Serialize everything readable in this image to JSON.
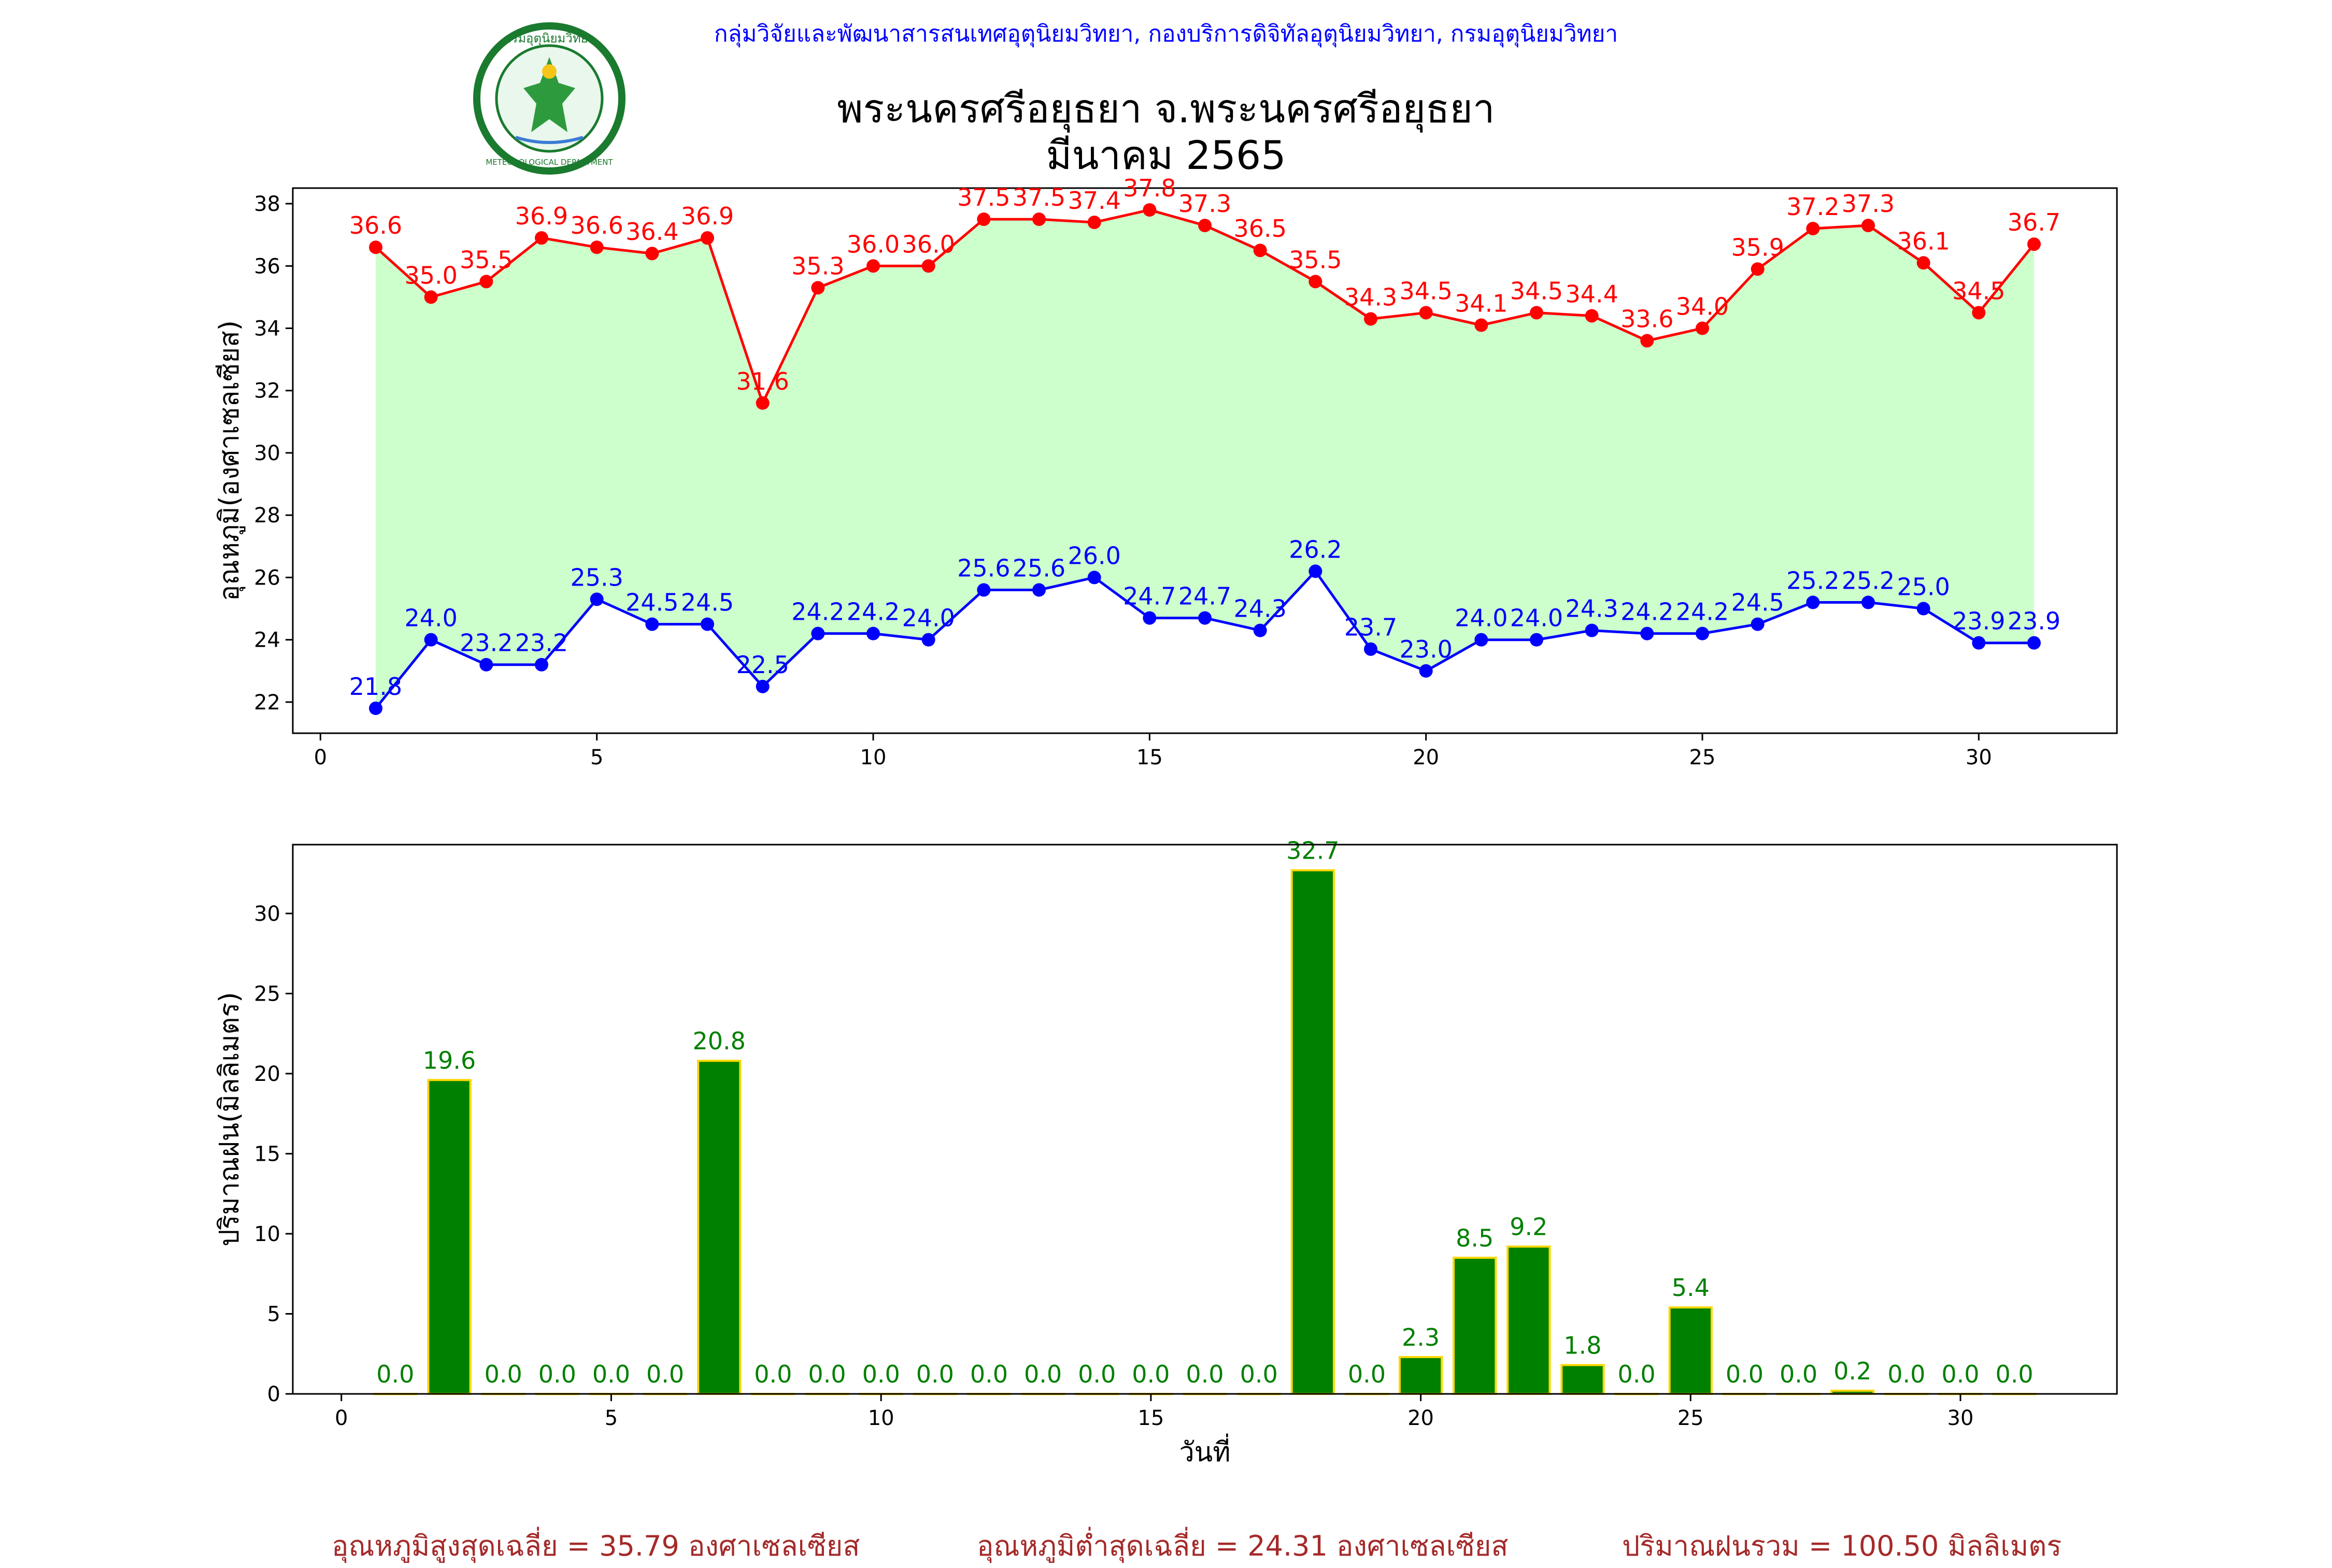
{
  "header": {
    "agency": "กลุ่มวิจัยและพัฒนาสารสนเทศอุตุนิยมวิทยา, กองบริการดิจิทัลอุตุนิยมวิทยา, กรมอุตุนิยมวิทยา",
    "title": "พระนครศรีอยุธยา จ.พระนครศรีอยุธยา",
    "subtitle": "มีนาคม 2565",
    "logo_text_top": "กรมอุตุนิยมวิทยา",
    "logo_text_bottom": "METEOROLOGICAL DEPARTMENT"
  },
  "colors": {
    "max": "#ff0000",
    "min": "#0000ff",
    "fill": "#ccffcc",
    "bar": "#008000",
    "bar_edge": "#ffd700",
    "summary": "#a52a2a"
  },
  "chart_data": [
    {
      "type": "line",
      "ylabel": "อุณหภูมิ(องศาเซลเซียส)",
      "xlabel": "",
      "x": [
        1,
        2,
        3,
        4,
        5,
        6,
        7,
        8,
        9,
        10,
        11,
        12,
        13,
        14,
        15,
        16,
        17,
        18,
        19,
        20,
        21,
        22,
        23,
        24,
        25,
        26,
        27,
        28,
        29,
        30,
        31
      ],
      "series": [
        {
          "key": "max",
          "values": [
            36.6,
            35.0,
            35.5,
            36.9,
            36.6,
            36.4,
            36.9,
            31.6,
            35.3,
            36.0,
            36.0,
            37.5,
            37.5,
            37.4,
            37.8,
            37.3,
            36.5,
            35.5,
            34.3,
            34.5,
            34.1,
            34.5,
            34.4,
            33.6,
            34.0,
            35.9,
            37.2,
            37.3,
            36.1,
            34.5,
            36.7
          ]
        },
        {
          "key": "min",
          "values": [
            21.8,
            24.0,
            23.2,
            23.2,
            25.3,
            24.5,
            24.5,
            22.5,
            24.2,
            24.2,
            24.0,
            25.6,
            25.6,
            26.0,
            24.7,
            24.7,
            24.3,
            26.2,
            23.7,
            23.0,
            24.0,
            24.0,
            24.3,
            24.2,
            24.2,
            24.5,
            25.2,
            25.2,
            25.0,
            23.9,
            23.9
          ]
        }
      ],
      "xlim": [
        -0.5,
        32.5
      ],
      "ylim": [
        21.0,
        38.5
      ],
      "xticks": [
        0,
        5,
        10,
        15,
        20,
        25,
        30
      ],
      "yticks": [
        22,
        24,
        26,
        28,
        30,
        32,
        34,
        36,
        38
      ]
    },
    {
      "type": "bar",
      "ylabel": "ปริมาณฝน(มิลลิเมตร)",
      "xlabel": "วันที่",
      "x": [
        1,
        2,
        3,
        4,
        5,
        6,
        7,
        8,
        9,
        10,
        11,
        12,
        13,
        14,
        15,
        16,
        17,
        18,
        19,
        20,
        21,
        22,
        23,
        24,
        25,
        26,
        27,
        28,
        29,
        30,
        31
      ],
      "values": [
        0.0,
        19.6,
        0.0,
        0.0,
        0.0,
        0.0,
        20.8,
        0.0,
        0.0,
        0.0,
        0.0,
        0.0,
        0.0,
        0.0,
        0.0,
        0.0,
        0.0,
        32.7,
        0.0,
        2.3,
        8.5,
        9.2,
        1.8,
        0.0,
        5.4,
        0.0,
        0.0,
        0.2,
        0.0,
        0.0,
        0.0
      ],
      "xlim": [
        -0.9,
        32.9
      ],
      "ylim": [
        0,
        34.3
      ],
      "xticks": [
        0,
        5,
        10,
        15,
        20,
        25,
        30
      ],
      "yticks": [
        0,
        5,
        10,
        15,
        20,
        25,
        30
      ]
    }
  ],
  "summary": {
    "max_avg": "อุณหภูมิสูงสุดเฉลี่ย = 35.79 องศาเซลเซียส",
    "min_avg": "อุณหภูมิต่ำสุดเฉลี่ย = 24.31 องศาเซลเซียส",
    "rain_total": "ปริมาณฝนรวม = 100.50 มิลลิเมตร"
  }
}
